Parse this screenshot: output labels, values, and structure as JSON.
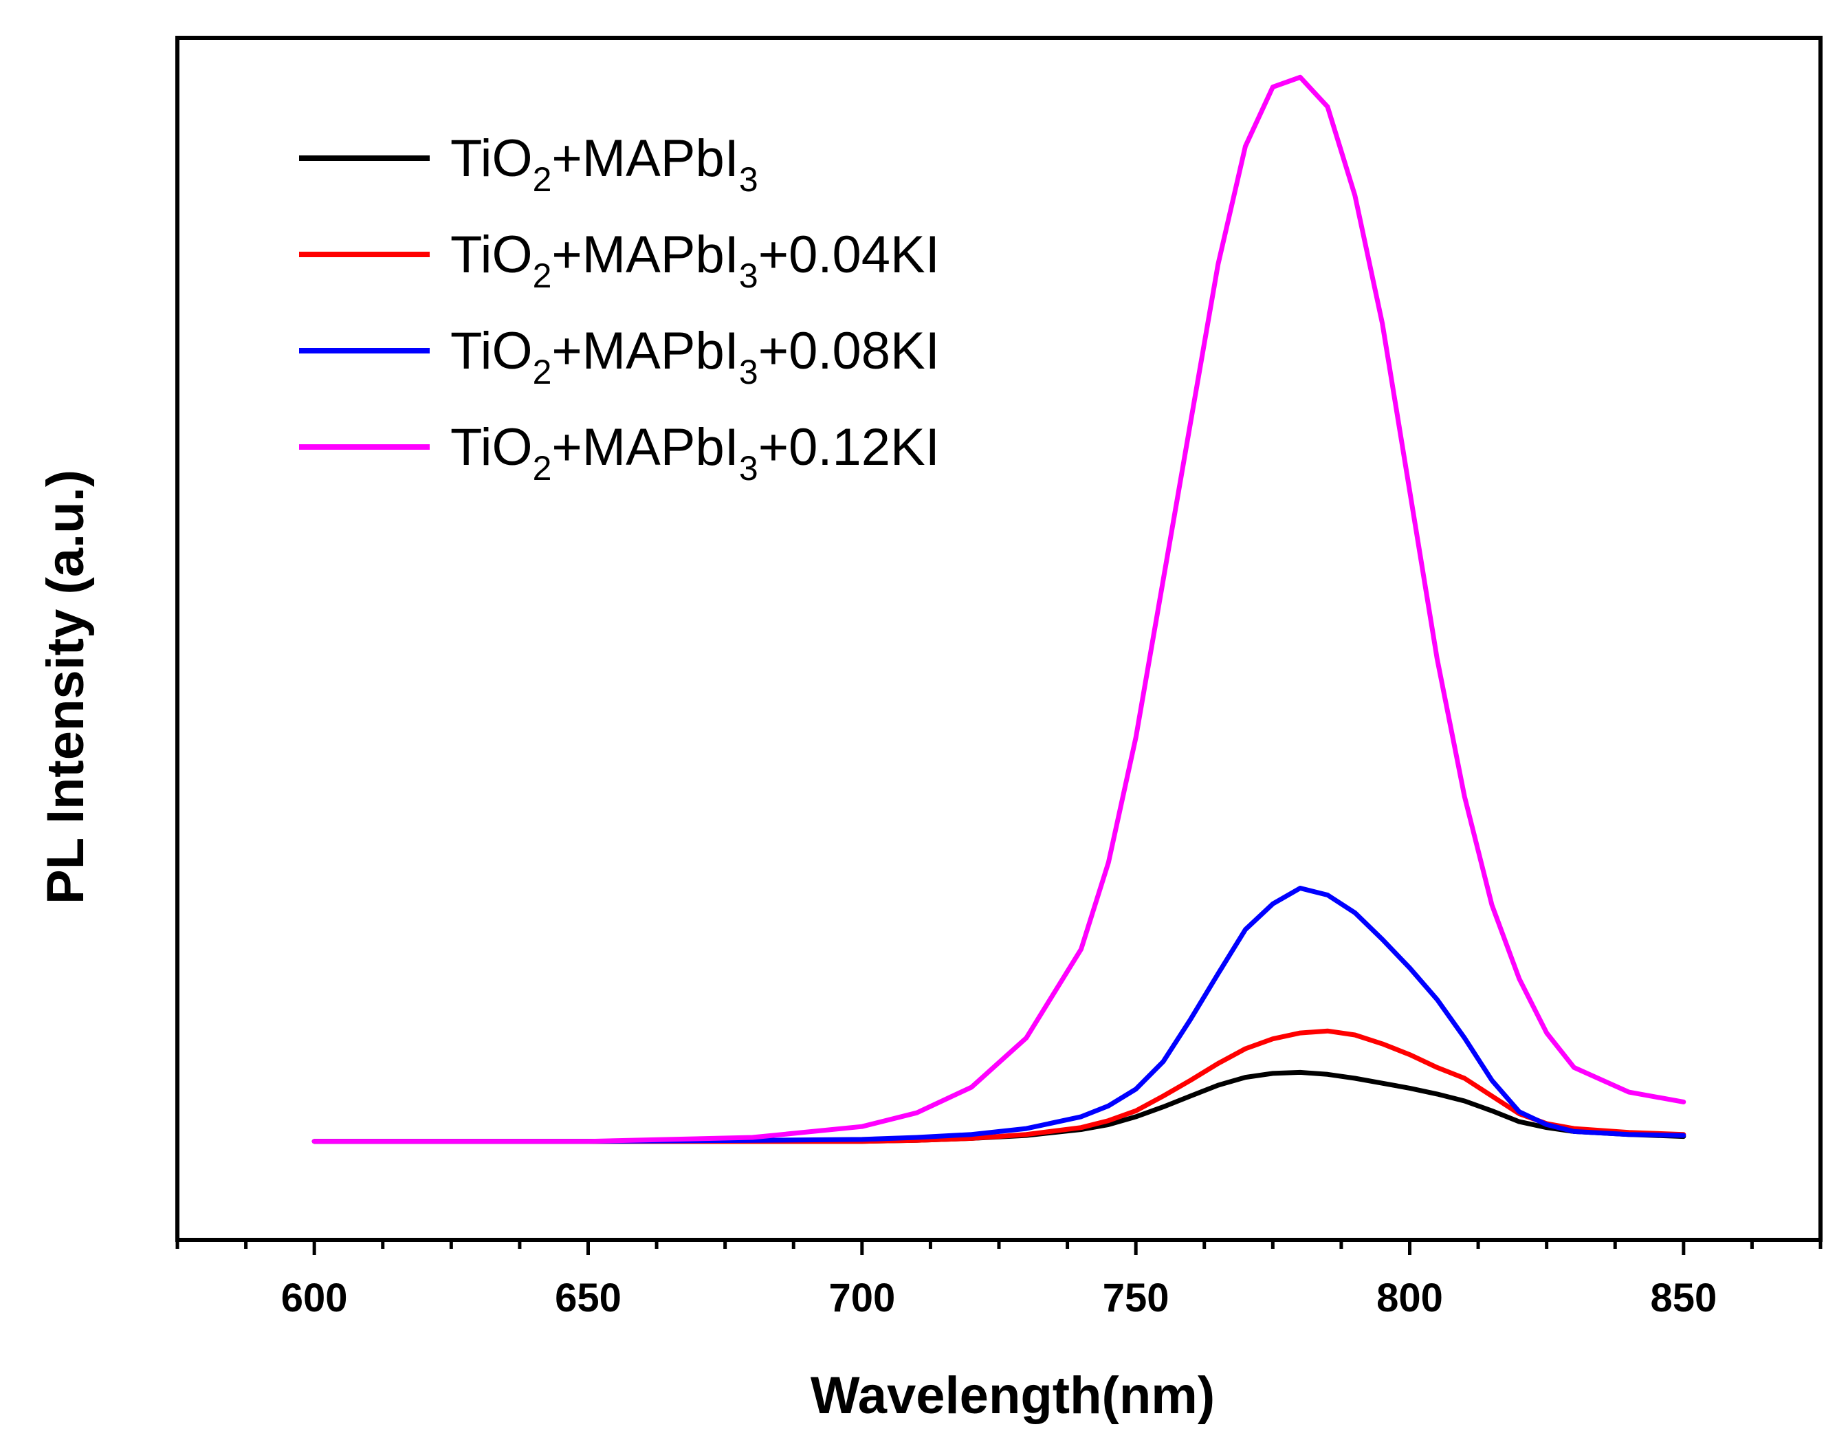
{
  "chart_data": {
    "type": "line",
    "title": "",
    "xlabel": "Wavelength(nm)",
    "ylabel": "PL Intensity (a.u.)",
    "xlim": [
      575,
      875
    ],
    "ylim": [
      -0.1,
      1.12
    ],
    "xticks": [
      600,
      650,
      700,
      750,
      800,
      850
    ],
    "xminor_step": 12.5,
    "y_tick_labels": false,
    "legend_position": "top-left",
    "grid": false,
    "x": [
      600,
      650,
      680,
      700,
      710,
      720,
      730,
      740,
      745,
      750,
      755,
      760,
      765,
      770,
      775,
      780,
      785,
      790,
      795,
      800,
      805,
      810,
      815,
      820,
      825,
      830,
      840,
      850
    ],
    "series": [
      {
        "name": "TiO2+MAPbI3",
        "label_parts": [
          {
            "t": "TiO"
          },
          {
            "t": "2",
            "sub": true
          },
          {
            "t": "+MAPbI"
          },
          {
            "t": "3",
            "sub": true
          }
        ],
        "color": "#000000",
        "values": [
          0.0,
          0.0,
          0.0,
          0.0,
          0.001,
          0.003,
          0.006,
          0.012,
          0.017,
          0.025,
          0.035,
          0.046,
          0.057,
          0.065,
          0.069,
          0.07,
          0.068,
          0.064,
          0.059,
          0.054,
          0.048,
          0.041,
          0.031,
          0.02,
          0.014,
          0.01,
          0.007,
          0.005
        ]
      },
      {
        "name": "TiO2+MAPbI3+0.04KI",
        "label_parts": [
          {
            "t": "TiO"
          },
          {
            "t": "2",
            "sub": true
          },
          {
            "t": "+MAPbI"
          },
          {
            "t": "3",
            "sub": true
          },
          {
            "t": "+0.04KI"
          }
        ],
        "color": "#ff0000",
        "values": [
          0.0,
          0.0,
          0.0,
          0.0,
          0.001,
          0.003,
          0.007,
          0.014,
          0.021,
          0.031,
          0.046,
          0.062,
          0.079,
          0.094,
          0.104,
          0.11,
          0.112,
          0.108,
          0.099,
          0.088,
          0.075,
          0.064,
          0.046,
          0.028,
          0.018,
          0.013,
          0.009,
          0.007
        ]
      },
      {
        "name": "TiO2+MAPbI3+0.08KI",
        "label_parts": [
          {
            "t": "TiO"
          },
          {
            "t": "2",
            "sub": true
          },
          {
            "t": "+MAPbI"
          },
          {
            "t": "3",
            "sub": true
          },
          {
            "t": "+0.08KI"
          }
        ],
        "color": "#0000ff",
        "values": [
          0.0,
          0.0,
          0.001,
          0.002,
          0.004,
          0.007,
          0.013,
          0.025,
          0.036,
          0.053,
          0.081,
          0.124,
          0.17,
          0.215,
          0.241,
          0.257,
          0.25,
          0.232,
          0.205,
          0.176,
          0.144,
          0.105,
          0.062,
          0.03,
          0.017,
          0.01,
          0.007,
          0.006
        ]
      },
      {
        "name": "TiO2+MAPbI3+0.12KI",
        "label_parts": [
          {
            "t": "TiO"
          },
          {
            "t": "2",
            "sub": true
          },
          {
            "t": "+MAPbI"
          },
          {
            "t": "3",
            "sub": true
          },
          {
            "t": "+0.12KI"
          }
        ],
        "color": "#ff00ff",
        "values": [
          0.0,
          0.0,
          0.004,
          0.015,
          0.029,
          0.055,
          0.105,
          0.195,
          0.283,
          0.41,
          0.57,
          0.73,
          0.89,
          1.01,
          1.07,
          1.08,
          1.05,
          0.96,
          0.83,
          0.66,
          0.49,
          0.35,
          0.24,
          0.165,
          0.11,
          0.075,
          0.05,
          0.04
        ]
      }
    ]
  }
}
